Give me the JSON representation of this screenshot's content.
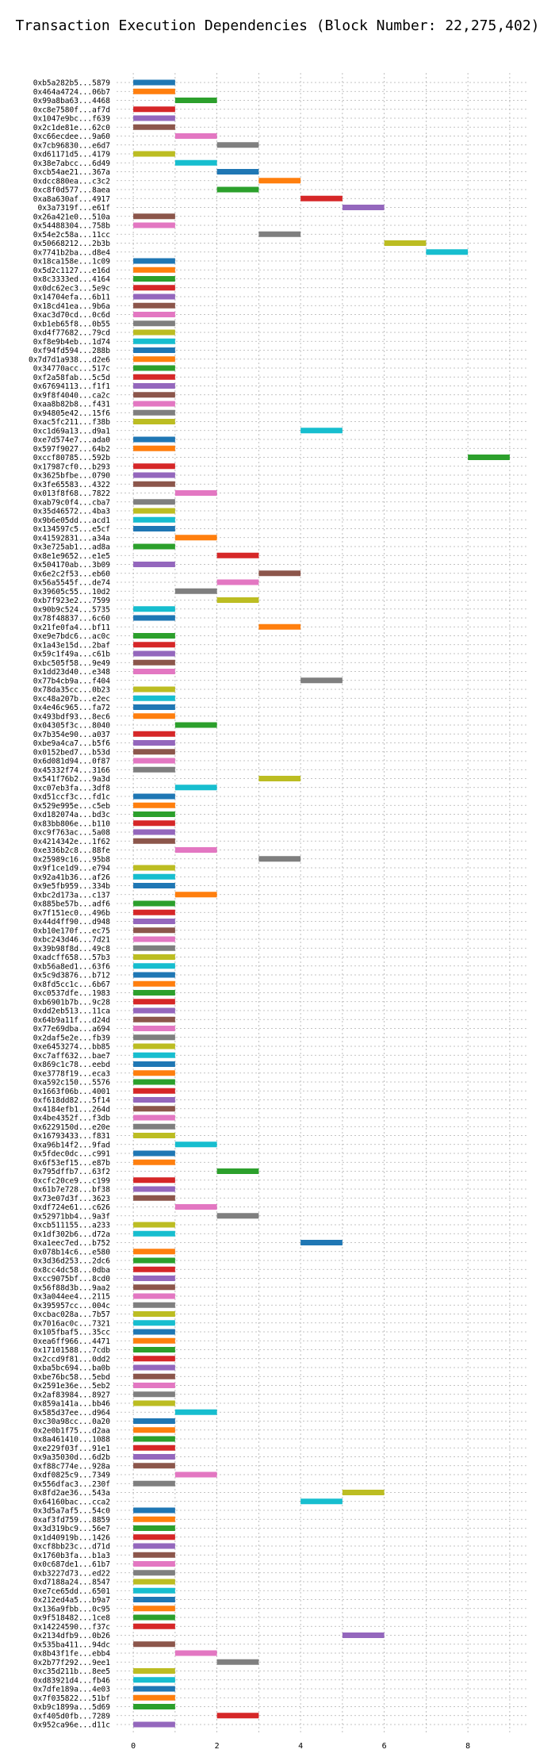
{
  "chart_data": {
    "type": "bar",
    "orientation": "horizontal-gantt",
    "title": "Transaction Execution Dependencies (Block Number: 22,275,402)",
    "xlabel": "",
    "ylabel": "",
    "xlim": [
      -0.4,
      9.4
    ],
    "xticks": [
      "0",
      "2",
      "4",
      "6",
      "8"
    ],
    "grid": true,
    "palette": [
      "#1f77b4",
      "#ff7f0e",
      "#2ca02c",
      "#d62728",
      "#9467bd",
      "#8c564b",
      "#e377c2",
      "#7f7f7f",
      "#bcbd22",
      "#17becf"
    ],
    "tasks": [
      {
        "label": "0xb5a282b5...5879",
        "start": 0,
        "end": 1
      },
      {
        "label": "0x464a4724...06b7",
        "start": 0,
        "end": 1
      },
      {
        "label": "0x99a8ba63...4468",
        "start": 1,
        "end": 2
      },
      {
        "label": "0xc8e7580f...af7d",
        "start": 0,
        "end": 1
      },
      {
        "label": "0x1047e9bc...f639",
        "start": 0,
        "end": 1
      },
      {
        "label": "0x2c1de81e...62c0",
        "start": 0,
        "end": 1
      },
      {
        "label": "0xc66ecdee...9a60",
        "start": 1,
        "end": 2
      },
      {
        "label": "0x7cb96830...e6d7",
        "start": 2,
        "end": 3
      },
      {
        "label": "0xd61171d5...4179",
        "start": 0,
        "end": 1
      },
      {
        "label": "0x38e7abcc...6d49",
        "start": 1,
        "end": 2
      },
      {
        "label": "0xcb54ae21...367a",
        "start": 2,
        "end": 3
      },
      {
        "label": "0xdcc880ea...c3c2",
        "start": 3,
        "end": 4
      },
      {
        "label": "0xc8f0d577...8aea",
        "start": 2,
        "end": 3
      },
      {
        "label": "0xa8a630af...4917",
        "start": 4,
        "end": 5
      },
      {
        "label": "0x3a7319f...e61f",
        "start": 5,
        "end": 6
      },
      {
        "label": "0x26a421e0...510a",
        "start": 0,
        "end": 1
      },
      {
        "label": "0x54488304...758b",
        "start": 0,
        "end": 1
      },
      {
        "label": "0x54e2c58a...11cc",
        "start": 3,
        "end": 4
      },
      {
        "label": "0x50668212...2b3b",
        "start": 6,
        "end": 7
      },
      {
        "label": "0x7741b2ba...d8e4",
        "start": 7,
        "end": 8
      },
      {
        "label": "0x18ca158e...1c09",
        "start": 0,
        "end": 1
      },
      {
        "label": "0x5d2c1127...e16d",
        "start": 0,
        "end": 1
      },
      {
        "label": "0x8c3333ed...4164",
        "start": 0,
        "end": 1
      },
      {
        "label": "0x0dc62ec3...5e9c",
        "start": 0,
        "end": 1
      },
      {
        "label": "0x14704efa...6b11",
        "start": 0,
        "end": 1
      },
      {
        "label": "0x18cd41ea...9b6a",
        "start": 0,
        "end": 1
      },
      {
        "label": "0xac3d70cd...0c6d",
        "start": 0,
        "end": 1
      },
      {
        "label": "0xb1eb65f8...0b55",
        "start": 0,
        "end": 1
      },
      {
        "label": "0xd4f77682...79cd",
        "start": 0,
        "end": 1
      },
      {
        "label": "0xf8e9b4eb...1d74",
        "start": 0,
        "end": 1
      },
      {
        "label": "0xf94fd594...288b",
        "start": 0,
        "end": 1
      },
      {
        "label": "0x7d7d1a938...d2e6",
        "start": 0,
        "end": 1
      },
      {
        "label": "0x34770acc...517c",
        "start": 0,
        "end": 1
      },
      {
        "label": "0xf2a58fab...5c5d",
        "start": 0,
        "end": 1
      },
      {
        "label": "0x67694113...f1f1",
        "start": 0,
        "end": 1
      },
      {
        "label": "0x9f8f4040...ca2c",
        "start": 0,
        "end": 1
      },
      {
        "label": "0xaa8b82b8...f431",
        "start": 0,
        "end": 1
      },
      {
        "label": "0x94805e42...15f6",
        "start": 0,
        "end": 1
      },
      {
        "label": "0xac5fc211...f38b",
        "start": 0,
        "end": 1
      },
      {
        "label": "0xc1d69a13...d9a1",
        "start": 4,
        "end": 5
      },
      {
        "label": "0xe7d574e7...ada0",
        "start": 0,
        "end": 1
      },
      {
        "label": "0x597f9027...64b2",
        "start": 0,
        "end": 1
      },
      {
        "label": "0xccf80785...592b",
        "start": 8,
        "end": 9
      },
      {
        "label": "0x17987cf0...b293",
        "start": 0,
        "end": 1
      },
      {
        "label": "0x3625bfbe...0790",
        "start": 0,
        "end": 1
      },
      {
        "label": "0x3fe65583...4322",
        "start": 0,
        "end": 1
      },
      {
        "label": "0x013f8f68...7822",
        "start": 1,
        "end": 2
      },
      {
        "label": "0xab79c0f4...cba7",
        "start": 0,
        "end": 1
      },
      {
        "label": "0x35d46572...4ba3",
        "start": 0,
        "end": 1
      },
      {
        "label": "0x9b6e05dd...acd1",
        "start": 0,
        "end": 1
      },
      {
        "label": "0x134597c5...e5cf",
        "start": 0,
        "end": 1
      },
      {
        "label": "0x41592831...a34a",
        "start": 1,
        "end": 2
      },
      {
        "label": "0x3e725ab1...ad8a",
        "start": 0,
        "end": 1
      },
      {
        "label": "0x8e1e9652...e1e5",
        "start": 2,
        "end": 3
      },
      {
        "label": "0x504170ab...3b09",
        "start": 0,
        "end": 1
      },
      {
        "label": "0x6e2c2f53...eb60",
        "start": 3,
        "end": 4
      },
      {
        "label": "0x56a5545f...de74",
        "start": 2,
        "end": 3
      },
      {
        "label": "0x39605c55...10d2",
        "start": 1,
        "end": 2
      },
      {
        "label": "0xb7f923e2...7599",
        "start": 2,
        "end": 3
      },
      {
        "label": "0x90b9c524...5735",
        "start": 0,
        "end": 1
      },
      {
        "label": "0x78f48837...6c60",
        "start": 0,
        "end": 1
      },
      {
        "label": "0x21fe0fa4...bf11",
        "start": 3,
        "end": 4
      },
      {
        "label": "0xe9e7bdc6...ac0c",
        "start": 0,
        "end": 1
      },
      {
        "label": "0x1a43e15d...2baf",
        "start": 0,
        "end": 1
      },
      {
        "label": "0x59c1f49a...c61b",
        "start": 0,
        "end": 1
      },
      {
        "label": "0xbc505f58...9e49",
        "start": 0,
        "end": 1
      },
      {
        "label": "0x1dd23d40...e348",
        "start": 0,
        "end": 1
      },
      {
        "label": "0x77b4cb9a...f404",
        "start": 4,
        "end": 5
      },
      {
        "label": "0x78da35cc...0b23",
        "start": 0,
        "end": 1
      },
      {
        "label": "0xc48a207b...e2ec",
        "start": 0,
        "end": 1
      },
      {
        "label": "0x4e46c965...fa72",
        "start": 0,
        "end": 1
      },
      {
        "label": "0x493bdf93...8ec6",
        "start": 0,
        "end": 1
      },
      {
        "label": "0x04305f3c...8040",
        "start": 1,
        "end": 2
      },
      {
        "label": "0x7b354e90...a037",
        "start": 0,
        "end": 1
      },
      {
        "label": "0xbe9a4ca7...b5f6",
        "start": 0,
        "end": 1
      },
      {
        "label": "0x0152bed7...b53d",
        "start": 0,
        "end": 1
      },
      {
        "label": "0x6d081d94...0f87",
        "start": 0,
        "end": 1
      },
      {
        "label": "0x45332f74...3166",
        "start": 0,
        "end": 1
      },
      {
        "label": "0x541f76b2...9a3d",
        "start": 3,
        "end": 4
      },
      {
        "label": "0xc07eb3fa...3df8",
        "start": 1,
        "end": 2
      },
      {
        "label": "0xd51ccf3c...fd1c",
        "start": 0,
        "end": 1
      },
      {
        "label": "0x529e995e...c5eb",
        "start": 0,
        "end": 1
      },
      {
        "label": "0xd182074a...bd3c",
        "start": 0,
        "end": 1
      },
      {
        "label": "0x83bb806e...b110",
        "start": 0,
        "end": 1
      },
      {
        "label": "0xc9f763ac...5a08",
        "start": 0,
        "end": 1
      },
      {
        "label": "0x4214342e...1f62",
        "start": 0,
        "end": 1
      },
      {
        "label": "0xe336b2c8...88fe",
        "start": 1,
        "end": 2
      },
      {
        "label": "0x25989c16...95b8",
        "start": 3,
        "end": 4
      },
      {
        "label": "0x9f1ce1d9...e794",
        "start": 0,
        "end": 1
      },
      {
        "label": "0x92a41b36...af26",
        "start": 0,
        "end": 1
      },
      {
        "label": "0x9e5fb959...334b",
        "start": 0,
        "end": 1
      },
      {
        "label": "0xbc2d173a...c137",
        "start": 1,
        "end": 2
      },
      {
        "label": "0x885be57b...adf6",
        "start": 0,
        "end": 1
      },
      {
        "label": "0x7f151ec0...496b",
        "start": 0,
        "end": 1
      },
      {
        "label": "0x44d4ff90...d948",
        "start": 0,
        "end": 1
      },
      {
        "label": "0xb10e170f...ec75",
        "start": 0,
        "end": 1
      },
      {
        "label": "0xbc243d46...7d21",
        "start": 0,
        "end": 1
      },
      {
        "label": "0x39b98f8d...49c8",
        "start": 0,
        "end": 1
      },
      {
        "label": "0xadcff658...57b3",
        "start": 0,
        "end": 1
      },
      {
        "label": "0xb56a8ed1...63f6",
        "start": 0,
        "end": 1
      },
      {
        "label": "0x5c9d3876...b712",
        "start": 0,
        "end": 1
      },
      {
        "label": "0x8fd5cc1c...6b67",
        "start": 0,
        "end": 1
      },
      {
        "label": "0xc0537dfe...1983",
        "start": 0,
        "end": 1
      },
      {
        "label": "0xb6901b7b...9c28",
        "start": 0,
        "end": 1
      },
      {
        "label": "0xdd2eb513...11ca",
        "start": 0,
        "end": 1
      },
      {
        "label": "0x64b9a11f...d24d",
        "start": 0,
        "end": 1
      },
      {
        "label": "0x77e69dba...a694",
        "start": 0,
        "end": 1
      },
      {
        "label": "0x2daf5e2e...fb39",
        "start": 0,
        "end": 1
      },
      {
        "label": "0xe6453274...bb85",
        "start": 0,
        "end": 1
      },
      {
        "label": "0xc7aff632...bae7",
        "start": 0,
        "end": 1
      },
      {
        "label": "0x869c1c78...eebd",
        "start": 0,
        "end": 1
      },
      {
        "label": "0xe3778f19...eca3",
        "start": 0,
        "end": 1
      },
      {
        "label": "0xa592c150...5576",
        "start": 0,
        "end": 1
      },
      {
        "label": "0x1663f06b...4001",
        "start": 0,
        "end": 1
      },
      {
        "label": "0xf618dd82...5f14",
        "start": 0,
        "end": 1
      },
      {
        "label": "0x4184efb1...264d",
        "start": 0,
        "end": 1
      },
      {
        "label": "0x4be4352f...f3db",
        "start": 0,
        "end": 1
      },
      {
        "label": "0x6229150d...e20e",
        "start": 0,
        "end": 1
      },
      {
        "label": "0x16793433...f831",
        "start": 0,
        "end": 1
      },
      {
        "label": "0xa96b14f2...9fad",
        "start": 1,
        "end": 2
      },
      {
        "label": "0x5fdec0dc...c991",
        "start": 0,
        "end": 1
      },
      {
        "label": "0x6f53ef15...e87b",
        "start": 0,
        "end": 1
      },
      {
        "label": "0x795dffb7...63f2",
        "start": 2,
        "end": 3
      },
      {
        "label": "0xcfc20ce9...c199",
        "start": 0,
        "end": 1
      },
      {
        "label": "0x61b7e728...bf38",
        "start": 0,
        "end": 1
      },
      {
        "label": "0x73e07d3f...3623",
        "start": 0,
        "end": 1
      },
      {
        "label": "0xdf724e61...c626",
        "start": 1,
        "end": 2
      },
      {
        "label": "0x52971bb4...9a3f",
        "start": 2,
        "end": 3
      },
      {
        "label": "0xcb511155...a233",
        "start": 0,
        "end": 1
      },
      {
        "label": "0x1df302b6...d72a",
        "start": 0,
        "end": 1
      },
      {
        "label": "0xa1eec7ed...b752",
        "start": 4,
        "end": 5
      },
      {
        "label": "0x078b14c6...e580",
        "start": 0,
        "end": 1
      },
      {
        "label": "0x3d36d253...2dc6",
        "start": 0,
        "end": 1
      },
      {
        "label": "0x8cc4dc58...0dba",
        "start": 0,
        "end": 1
      },
      {
        "label": "0xcc9075bf...8cd0",
        "start": 0,
        "end": 1
      },
      {
        "label": "0x56f88d3b...9aa2",
        "start": 0,
        "end": 1
      },
      {
        "label": "0x3a044ee4...2115",
        "start": 0,
        "end": 1
      },
      {
        "label": "0x395957cc...004c",
        "start": 0,
        "end": 1
      },
      {
        "label": "0xcbac028a...7b57",
        "start": 0,
        "end": 1
      },
      {
        "label": "0x7016ac0c...7321",
        "start": 0,
        "end": 1
      },
      {
        "label": "0x105fbaf5...35cc",
        "start": 0,
        "end": 1
      },
      {
        "label": "0xea6ff966...4471",
        "start": 0,
        "end": 1
      },
      {
        "label": "0x17101588...7cdb",
        "start": 0,
        "end": 1
      },
      {
        "label": "0x2ccd9f81...0dd2",
        "start": 0,
        "end": 1
      },
      {
        "label": "0xba5bc694...ba0b",
        "start": 0,
        "end": 1
      },
      {
        "label": "0xbe76bc58...5ebd",
        "start": 0,
        "end": 1
      },
      {
        "label": "0x2591e36e...5eb2",
        "start": 0,
        "end": 1
      },
      {
        "label": "0x2af83984...8927",
        "start": 0,
        "end": 1
      },
      {
        "label": "0x859a141a...bb46",
        "start": 0,
        "end": 1
      },
      {
        "label": "0x585d37ee...d964",
        "start": 1,
        "end": 2
      },
      {
        "label": "0xc30a98cc...0a20",
        "start": 0,
        "end": 1
      },
      {
        "label": "0x2e0b1f75...d2aa",
        "start": 0,
        "end": 1
      },
      {
        "label": "0x8a461410...1088",
        "start": 0,
        "end": 1
      },
      {
        "label": "0xe229f03f...91e1",
        "start": 0,
        "end": 1
      },
      {
        "label": "0x9a35030d...6d2b",
        "start": 0,
        "end": 1
      },
      {
        "label": "0xf88c774e...928a",
        "start": 0,
        "end": 1
      },
      {
        "label": "0xdf0825c9...7349",
        "start": 1,
        "end": 2
      },
      {
        "label": "0x556dfac3...230f",
        "start": 0,
        "end": 1
      },
      {
        "label": "0x8fd2ae36...543a",
        "start": 5,
        "end": 6
      },
      {
        "label": "0x64160bac...cca2",
        "start": 4,
        "end": 5
      },
      {
        "label": "0x3d5a7af5...54c0",
        "start": 0,
        "end": 1
      },
      {
        "label": "0xaf3fd759...8859",
        "start": 0,
        "end": 1
      },
      {
        "label": "0x3d319bc9...56e7",
        "start": 0,
        "end": 1
      },
      {
        "label": "0x1d40919b...1426",
        "start": 0,
        "end": 1
      },
      {
        "label": "0xcf8bb23c...d71d",
        "start": 0,
        "end": 1
      },
      {
        "label": "0x1760b3fa...b1a3",
        "start": 0,
        "end": 1
      },
      {
        "label": "0x0c687de1...61b7",
        "start": 0,
        "end": 1
      },
      {
        "label": "0xb3227d73...ed22",
        "start": 0,
        "end": 1
      },
      {
        "label": "0xd7188a24...8547",
        "start": 0,
        "end": 1
      },
      {
        "label": "0xe7ce65dd...6501",
        "start": 0,
        "end": 1
      },
      {
        "label": "0x212ed4a5...b9a7",
        "start": 0,
        "end": 1
      },
      {
        "label": "0x136a9fbb...0c95",
        "start": 0,
        "end": 1
      },
      {
        "label": "0x9f518482...1ce8",
        "start": 0,
        "end": 1
      },
      {
        "label": "0x14224590...f37c",
        "start": 0,
        "end": 1
      },
      {
        "label": "0x2134dfb9...0b26",
        "start": 5,
        "end": 6
      },
      {
        "label": "0x535ba411...94dc",
        "start": 0,
        "end": 1
      },
      {
        "label": "0x8b43f1fe...ebb4",
        "start": 1,
        "end": 2
      },
      {
        "label": "0x2b77f292...9ee1",
        "start": 2,
        "end": 3
      },
      {
        "label": "0xc35d211b...8ee5",
        "start": 0,
        "end": 1
      },
      {
        "label": "0xd83921d4...fb46",
        "start": 0,
        "end": 1
      },
      {
        "label": "0x7dfe189a...4e03",
        "start": 0,
        "end": 1
      },
      {
        "label": "0x7f035822...51bf",
        "start": 0,
        "end": 1
      },
      {
        "label": "0xb9c1899a...5d69",
        "start": 0,
        "end": 1
      },
      {
        "label": "0xf405d0fb...7289",
        "start": 2,
        "end": 3
      },
      {
        "label": "0x952ca96e...d11c",
        "start": 0,
        "end": 1
      }
    ]
  }
}
